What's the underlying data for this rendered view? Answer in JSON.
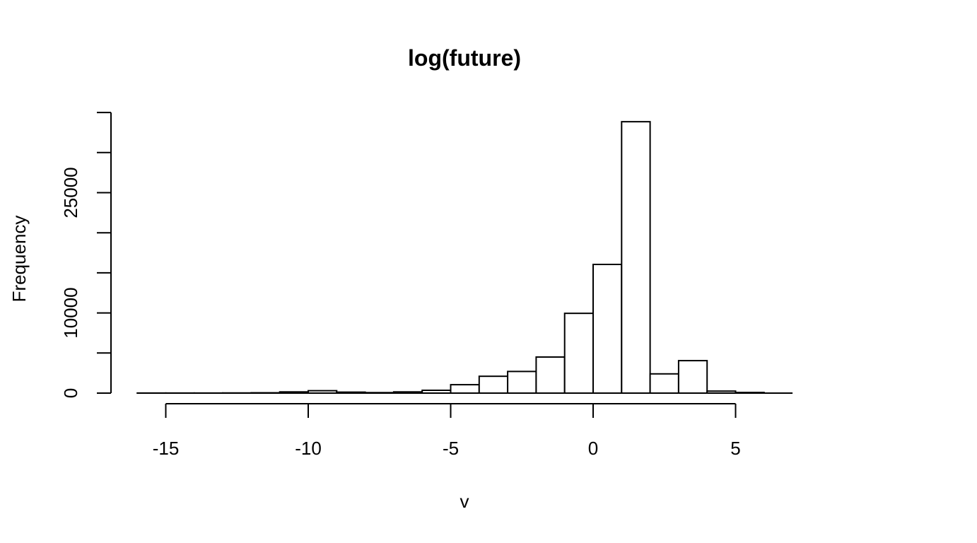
{
  "chart_data": {
    "type": "bar",
    "title": "log(future)",
    "xlabel": "v",
    "ylabel": "Frequency",
    "xlim": [
      -16,
      7
    ],
    "ylim": [
      0,
      35000
    ],
    "x_ticks": [
      -15,
      -10,
      -5,
      0,
      5
    ],
    "y_ticks": [
      0,
      5000,
      10000,
      15000,
      20000,
      25000,
      30000,
      35000
    ],
    "y_tick_labels_shown": [
      0,
      10000,
      25000
    ],
    "bins": [
      {
        "start": -16,
        "end": -15,
        "count": 10
      },
      {
        "start": -15,
        "end": -14,
        "count": 10
      },
      {
        "start": -14,
        "end": -13,
        "count": 10
      },
      {
        "start": -13,
        "end": -12,
        "count": 20
      },
      {
        "start": -12,
        "end": -11,
        "count": 40
      },
      {
        "start": -11,
        "end": -10,
        "count": 150
      },
      {
        "start": -10,
        "end": -9,
        "count": 300
      },
      {
        "start": -9,
        "end": -8,
        "count": 120
      },
      {
        "start": -8,
        "end": -7,
        "count": 60
      },
      {
        "start": -7,
        "end": -6,
        "count": 150
      },
      {
        "start": -6,
        "end": -5,
        "count": 350
      },
      {
        "start": -5,
        "end": -4,
        "count": 1050
      },
      {
        "start": -4,
        "end": -3,
        "count": 2100
      },
      {
        "start": -3,
        "end": -2,
        "count": 2700
      },
      {
        "start": -2,
        "end": -1,
        "count": 4500
      },
      {
        "start": -1,
        "end": 0,
        "count": 9950
      },
      {
        "start": 0,
        "end": 1,
        "count": 16050
      },
      {
        "start": 1,
        "end": 2,
        "count": 33850
      },
      {
        "start": 2,
        "end": 3,
        "count": 2400
      },
      {
        "start": 3,
        "end": 4,
        "count": 4050
      },
      {
        "start": 4,
        "end": 5,
        "count": 250
      },
      {
        "start": 5,
        "end": 6,
        "count": 80
      }
    ]
  }
}
